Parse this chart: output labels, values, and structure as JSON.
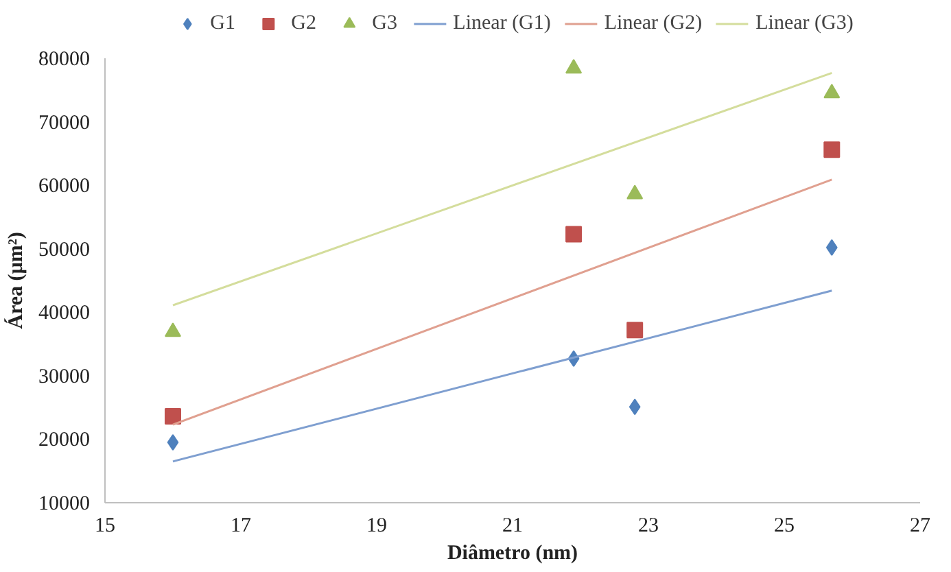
{
  "chart_data": {
    "type": "scatter",
    "xlabel": "Diâmetro (nm)",
    "ylabel": "Área (µm²)",
    "xlim": [
      15,
      27
    ],
    "xticks": [
      15,
      17,
      19,
      21,
      23,
      25,
      27
    ],
    "ylim": [
      10000,
      80000
    ],
    "yticks": [
      10000,
      20000,
      30000,
      40000,
      50000,
      60000,
      70000,
      80000
    ],
    "grid": false,
    "legend": "top",
    "series": [
      {
        "name": "G1",
        "marker": "diamond",
        "color": "#4f81bd",
        "x": [
          16,
          21.9,
          22.8,
          25.7
        ],
        "values": [
          19500,
          32700,
          25100,
          50200
        ]
      },
      {
        "name": "G2",
        "marker": "square",
        "color": "#c0504d",
        "x": [
          16,
          21.9,
          22.8,
          25.7
        ],
        "values": [
          23600,
          52300,
          37200,
          65600
        ]
      },
      {
        "name": "G3",
        "marker": "triangle",
        "color": "#9bbb59",
        "x": [
          16,
          21.9,
          22.8,
          25.7
        ],
        "values": [
          36900,
          78400,
          58600,
          74500
        ]
      },
      {
        "name": "Linear (G1)",
        "type": "line",
        "line_style": "solid",
        "color": "#7f9fd0",
        "x": [
          16,
          25.7
        ],
        "values": [
          16500,
          43400
        ]
      },
      {
        "name": "Linear (G2)",
        "type": "line",
        "line_style": "solid",
        "color": "#e0a090",
        "x": [
          16,
          25.7
        ],
        "values": [
          22300,
          60900
        ]
      },
      {
        "name": "Linear (G3)",
        "type": "line",
        "line_style": "solid",
        "color": "#d4dd9c",
        "x": [
          16,
          25.7
        ],
        "values": [
          41100,
          77700
        ]
      }
    ]
  }
}
